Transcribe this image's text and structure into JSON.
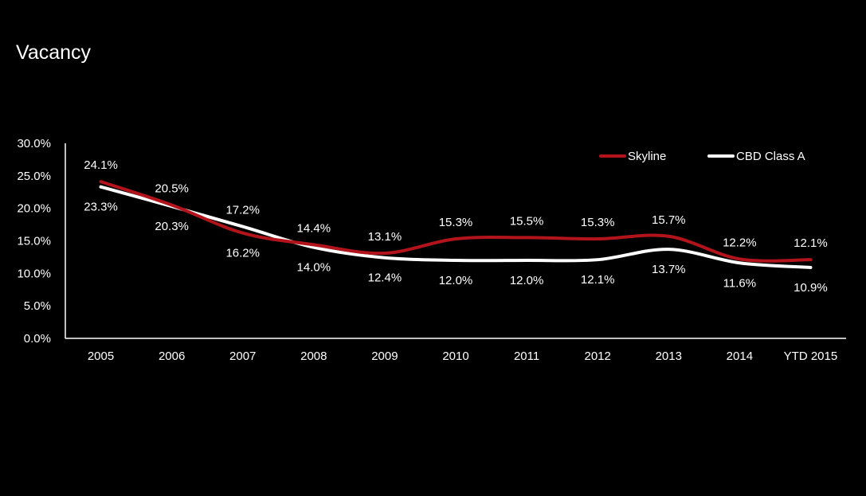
{
  "title": "Vacancy",
  "chart_data": {
    "type": "line",
    "title": "Vacancy",
    "xlabel": "",
    "ylabel": "",
    "categories": [
      "2005",
      "2006",
      "2007",
      "2008",
      "2009",
      "2010",
      "2011",
      "2012",
      "2013",
      "2014",
      "YTD 2015"
    ],
    "series": [
      {
        "name": "Skyline",
        "color": "#b3141c",
        "values": [
          24.1,
          20.5,
          16.2,
          14.4,
          13.1,
          15.3,
          15.5,
          15.3,
          15.7,
          12.2,
          12.1
        ],
        "labels": [
          "24.1%",
          "20.5%",
          "16.2%",
          "14.4%",
          "13.1%",
          "15.3%",
          "15.5%",
          "15.3%",
          "15.7%",
          "12.2%",
          "12.1%"
        ]
      },
      {
        "name": "CBD Class A",
        "color": "#ffffff",
        "values": [
          23.3,
          20.3,
          17.2,
          14.0,
          12.4,
          12.0,
          12.0,
          12.1,
          13.7,
          11.6,
          10.9
        ],
        "labels": [
          "23.3%",
          "20.3%",
          "17.2%",
          "14.0%",
          "12.4%",
          "12.0%",
          "12.0%",
          "12.1%",
          "13.7%",
          "11.6%",
          "10.9%"
        ]
      }
    ],
    "yticks": [
      "0.0%",
      "5.0%",
      "10.0%",
      "15.0%",
      "20.0%",
      "25.0%",
      "30.0%"
    ],
    "ylim": [
      0,
      30
    ],
    "grid": false,
    "legend": "top-right"
  }
}
